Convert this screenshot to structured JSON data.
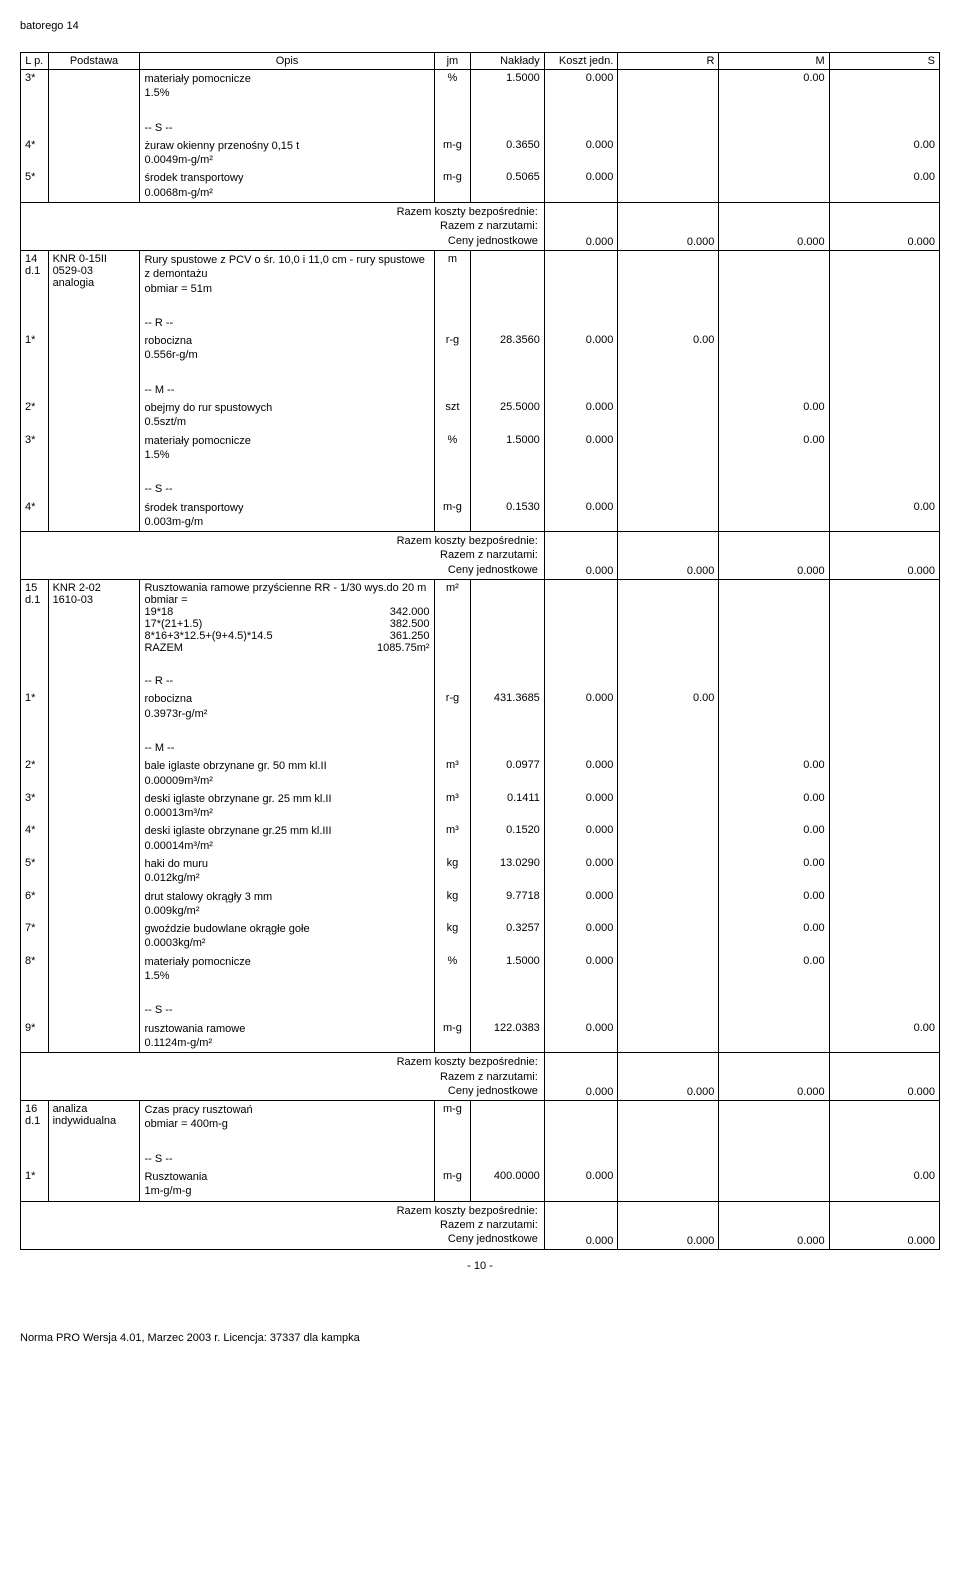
{
  "docTitle": "batorego 14",
  "headers": {
    "lp": "L p.",
    "podstawa": "Podstawa",
    "opis": "Opis",
    "jm": "jm",
    "naklady": "Nakłady",
    "koszt": "Koszt jedn.",
    "r": "R",
    "m": "M",
    "s": "S"
  },
  "rows": [
    {
      "lp": "3*",
      "opis": "materiały pomocnicze\n1.5%",
      "jm": "%",
      "naklady": "1.5000",
      "koszt": "0.000",
      "m": "0.00"
    },
    {
      "spacer": true
    },
    {
      "opis": "-- S --"
    },
    {
      "lp": "4*",
      "opis": "żuraw okienny przenośny 0,15 t\n0.0049m-g/m²",
      "jm": "m-g",
      "naklady": "0.3650",
      "koszt": "0.000",
      "s": "0.00"
    },
    {
      "lp": "5*",
      "opis": "środek transportowy\n0.0068m-g/m²",
      "jm": "m-g",
      "naklady": "0.5065",
      "koszt": "0.000",
      "s": "0.00"
    },
    {
      "razem": true,
      "label1": "Razem koszty bezpośrednie:",
      "label2": "Razem z narzutami:",
      "label3": "Ceny jednostkowe",
      "koszt": "0.000",
      "r": "0.000",
      "m": "0.000",
      "s": "0.000"
    },
    {
      "lp": "14\nd.1",
      "podstawa": "KNR 0-15II\n0529-03\nanalogia",
      "opis": "Rury spustowe z PCV o śr. 10,0 i 11,0 cm - rury spustowe z demontażu\nobmiar = 51m",
      "jm": "m"
    },
    {
      "spacer": true
    },
    {
      "opis": "-- R --"
    },
    {
      "lp": "1*",
      "opis": "robocizna\n0.556r-g/m",
      "jm": "r-g",
      "naklady": "28.3560",
      "koszt": "0.000",
      "r": "0.00"
    },
    {
      "spacer": true
    },
    {
      "opis": "-- M --"
    },
    {
      "lp": "2*",
      "opis": "obejmy do rur spustowych\n0.5szt/m",
      "jm": "szt",
      "naklady": "25.5000",
      "koszt": "0.000",
      "m": "0.00"
    },
    {
      "lp": "3*",
      "opis": "materiały pomocnicze\n1.5%",
      "jm": "%",
      "naklady": "1.5000",
      "koszt": "0.000",
      "m": "0.00"
    },
    {
      "spacer": true
    },
    {
      "opis": "-- S --"
    },
    {
      "lp": "4*",
      "opis": "środek transportowy\n0.003m-g/m",
      "jm": "m-g",
      "naklady": "0.1530",
      "koszt": "0.000",
      "s": "0.00"
    },
    {
      "razem": true,
      "label1": "Razem koszty bezpośrednie:",
      "label2": "Razem z narzutami:",
      "label3": "Ceny jednostkowe",
      "koszt": "0.000",
      "r": "0.000",
      "m": "0.000",
      "s": "0.000"
    },
    {
      "lp": "15\nd.1",
      "podstawa": "KNR 2-02\n1610-03",
      "opisObmiar": {
        "title": "Rusztowania ramowe przyścienne RR - 1/30 wys.do 20 m",
        "obmiarLabel": "obmiar =",
        "lines": [
          {
            "l": "19*18",
            "r": "342.000"
          },
          {
            "l": "17*(21+1.5)",
            "r": "382.500"
          },
          {
            "l": "8*16+3*12.5+(9+4.5)*14.5",
            "r": "361.250"
          },
          {
            "l": "RAZEM",
            "r": "1085.75m²"
          }
        ]
      },
      "jm": "m²"
    },
    {
      "spacer": true
    },
    {
      "opis": "-- R --"
    },
    {
      "lp": "1*",
      "opis": "robocizna\n0.3973r-g/m²",
      "jm": "r-g",
      "naklady": "431.3685",
      "koszt": "0.000",
      "r": "0.00"
    },
    {
      "spacer": true
    },
    {
      "opis": "-- M --"
    },
    {
      "lp": "2*",
      "opis": "bale iglaste obrzynane gr. 50 mm kl.II\n0.00009m³/m²",
      "jm": "m³",
      "naklady": "0.0977",
      "koszt": "0.000",
      "m": "0.00"
    },
    {
      "lp": "3*",
      "opis": "deski iglaste obrzynane gr. 25 mm kl.II\n0.00013m³/m²",
      "jm": "m³",
      "naklady": "0.1411",
      "koszt": "0.000",
      "m": "0.00"
    },
    {
      "lp": "4*",
      "opis": "deski iglaste obrzynane gr.25 mm kl.III\n0.00014m³/m²",
      "jm": "m³",
      "naklady": "0.1520",
      "koszt": "0.000",
      "m": "0.00"
    },
    {
      "lp": "5*",
      "opis": "haki do muru\n0.012kg/m²",
      "jm": "kg",
      "naklady": "13.0290",
      "koszt": "0.000",
      "m": "0.00"
    },
    {
      "lp": "6*",
      "opis": "drut stalowy okrągły 3 mm\n0.009kg/m²",
      "jm": "kg",
      "naklady": "9.7718",
      "koszt": "0.000",
      "m": "0.00"
    },
    {
      "lp": "7*",
      "opis": "gwoździe budowlane okrągłe gołe\n0.0003kg/m²",
      "jm": "kg",
      "naklady": "0.3257",
      "koszt": "0.000",
      "m": "0.00"
    },
    {
      "lp": "8*",
      "opis": "materiały pomocnicze\n1.5%",
      "jm": "%",
      "naklady": "1.5000",
      "koszt": "0.000",
      "m": "0.00"
    },
    {
      "spacer": true
    },
    {
      "opis": "-- S --"
    },
    {
      "lp": "9*",
      "opis": "rusztowania ramowe\n0.1124m-g/m²",
      "jm": "m-g",
      "naklady": "122.0383",
      "koszt": "0.000",
      "s": "0.00"
    },
    {
      "razem": true,
      "label1": "Razem koszty bezpośrednie:",
      "label2": "Razem z narzutami:",
      "label3": "Ceny jednostkowe",
      "koszt": "0.000",
      "r": "0.000",
      "m": "0.000",
      "s": "0.000"
    },
    {
      "lp": "16\nd.1",
      "podstawa": "analiza indywidualna",
      "opis": "Czas pracy rusztowań\nobmiar = 400m-g",
      "jm": "m-g"
    },
    {
      "spacer": true
    },
    {
      "opis": "-- S --"
    },
    {
      "lp": "1*",
      "opis": "Rusztowania\n1m-g/m-g",
      "jm": "m-g",
      "naklady": "400.0000",
      "koszt": "0.000",
      "s": "0.00"
    },
    {
      "razem": true,
      "label1": "Razem koszty bezpośrednie:",
      "label2": "Razem z narzutami:",
      "label3": "Ceny jednostkowe",
      "koszt": "0.000",
      "r": "0.000",
      "m": "0.000",
      "s": "0.000"
    }
  ],
  "pageNumber": "- 10 -",
  "footerLine": "Norma PRO Wersja 4.01, Marzec 2003 r. Licencja: 37337 dla kampka"
}
